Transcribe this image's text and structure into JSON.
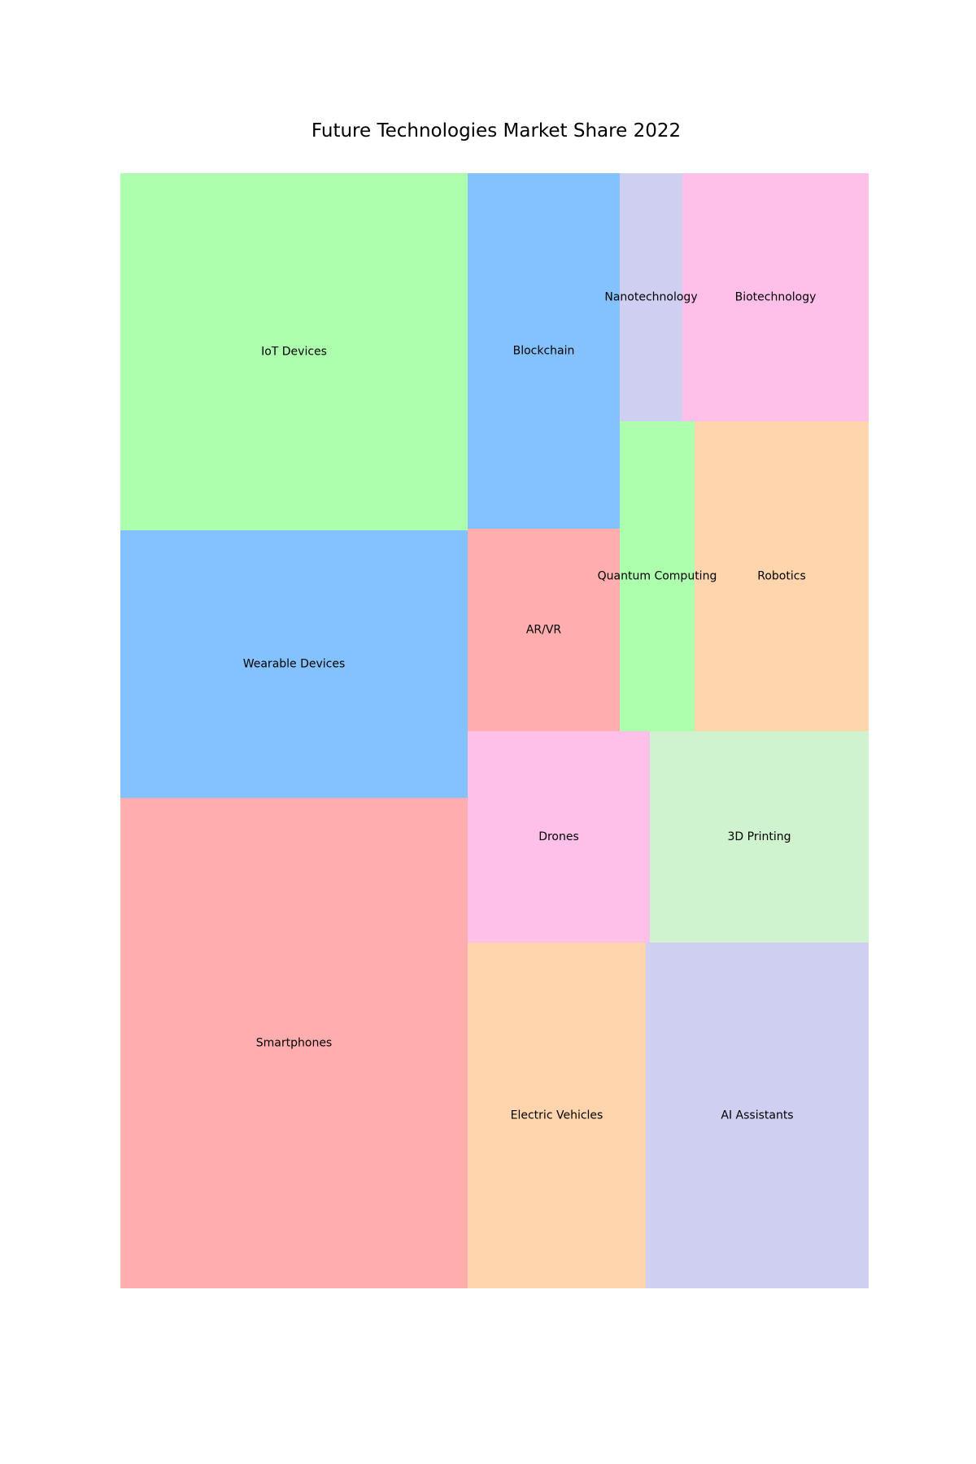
{
  "chart_data": {
    "type": "treemap",
    "title": "Future Technologies Market Share 2022",
    "grid": false,
    "legend": "none",
    "items": [
      {
        "label": "Smartphones",
        "value": 22,
        "color": "#ffadad"
      },
      {
        "label": "Wearable Devices",
        "value": 12,
        "color": "#84c1ff"
      },
      {
        "label": "IoT Devices",
        "value": 16,
        "color": "#adffad"
      },
      {
        "label": "Electric Vehicles",
        "value": 8,
        "color": "#fed5ad"
      },
      {
        "label": "AI Assistants",
        "value": 10,
        "color": "#cfcff2"
      },
      {
        "label": "Drones",
        "value": 5,
        "color": "#fec0e9"
      },
      {
        "label": "3D Printing",
        "value": 6,
        "color": "#cff2cf"
      },
      {
        "label": "AR/VR",
        "value": 4,
        "color": "#ffadad"
      },
      {
        "label": "Blockchain",
        "value": 7,
        "color": "#84c1ff"
      },
      {
        "label": "Quantum Computing",
        "value": 3,
        "color": "#adffad"
      },
      {
        "label": "Robotics",
        "value": 7,
        "color": "#fed5ad"
      },
      {
        "label": "Nanotechnology",
        "value": 2,
        "color": "#cfcff2"
      },
      {
        "label": "Biotechnology",
        "value": 6,
        "color": "#fec0e9"
      }
    ]
  }
}
